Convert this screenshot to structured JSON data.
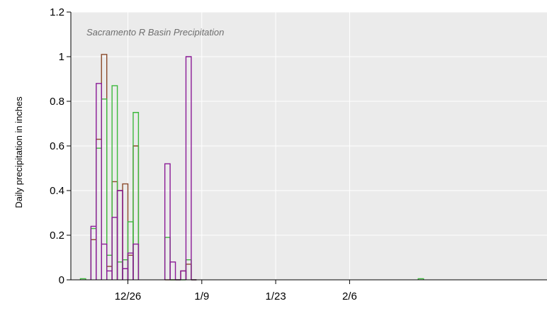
{
  "chart_data": {
    "type": "line",
    "title": "Sacramento R Basin Precipitation",
    "xlabel": "",
    "ylabel": "Daily precipitation in inches",
    "ylim": [
      0,
      1.2
    ],
    "yticks": [
      "0",
      "0.2",
      "0.4",
      "0.6",
      "0.8",
      "1",
      "1.2"
    ],
    "xticks": [
      {
        "date": "12/26",
        "label": "12/26"
      },
      {
        "date": "1/9",
        "label": "1/9"
      },
      {
        "date": "1/23",
        "label": "1/23"
      },
      {
        "date": "2/6",
        "label": "2/6"
      }
    ],
    "xlim": [
      "12/16",
      "2/21"
    ],
    "grid": true,
    "step_style": "histogram-steps",
    "series": [
      {
        "color": "#8b4a2b",
        "points": [
          [
            "12/19",
            0.18
          ],
          [
            "12/20",
            0.63
          ],
          [
            "12/21",
            1.01
          ],
          [
            "12/22",
            0.06
          ],
          [
            "12/23",
            0.44
          ],
          [
            "12/24",
            0.4
          ],
          [
            "12/25",
            0.43
          ],
          [
            "12/26",
            0.11
          ],
          [
            "12/27",
            0.6
          ],
          [
            "1/2",
            0.0
          ],
          [
            "1/3",
            0.0
          ],
          [
            "1/4",
            0.0
          ],
          [
            "1/5",
            0.04
          ],
          [
            "1/6",
            0.07
          ],
          [
            "1/7",
            0.0
          ]
        ]
      },
      {
        "color": "#3cb83c",
        "points": [
          [
            "12/17",
            0.005
          ],
          [
            "12/19",
            0.23
          ],
          [
            "12/20",
            0.59
          ],
          [
            "12/21",
            0.81
          ],
          [
            "12/22",
            0.11
          ],
          [
            "12/23",
            0.87
          ],
          [
            "12/24",
            0.08
          ],
          [
            "12/25",
            0.09
          ],
          [
            "12/26",
            0.26
          ],
          [
            "12/27",
            0.75
          ],
          [
            "1/2",
            0.19
          ],
          [
            "1/3",
            0.0
          ],
          [
            "1/4",
            0.0
          ],
          [
            "1/5",
            0.0
          ],
          [
            "1/6",
            0.09
          ],
          [
            "1/7",
            0.0
          ],
          [
            "2/19",
            0.005
          ]
        ]
      },
      {
        "color": "#8a1a96",
        "points": [
          [
            "12/19",
            0.24
          ],
          [
            "12/20",
            0.88
          ],
          [
            "12/21",
            0.16
          ],
          [
            "12/22",
            0.04
          ],
          [
            "12/23",
            0.28
          ],
          [
            "12/24",
            0.4
          ],
          [
            "12/25",
            0.05
          ],
          [
            "12/26",
            0.12
          ],
          [
            "12/27",
            0.16
          ],
          [
            "1/2",
            0.52
          ],
          [
            "1/3",
            0.08
          ],
          [
            "1/4",
            0.0
          ],
          [
            "1/5",
            0.04
          ],
          [
            "1/6",
            1.0
          ],
          [
            "1/7",
            0.0
          ]
        ]
      }
    ]
  }
}
